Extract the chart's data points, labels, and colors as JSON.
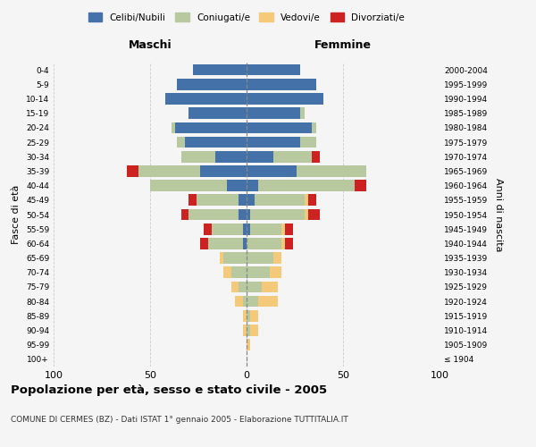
{
  "title": "Popolazione per età, sesso e stato civile - 2005",
  "subtitle": "COMUNE DI CERMES (BZ) - Dati ISTAT 1° gennaio 2005 - Elaborazione TUTTITALIA.IT",
  "xlabel_left": "Maschi",
  "xlabel_right": "Femmine",
  "ylabel_left": "Fasce di età",
  "ylabel_right": "Anni di nascita",
  "xlim": 100,
  "age_groups": [
    "100+",
    "95-99",
    "90-94",
    "85-89",
    "80-84",
    "75-79",
    "70-74",
    "65-69",
    "60-64",
    "55-59",
    "50-54",
    "45-49",
    "40-44",
    "35-39",
    "30-34",
    "25-29",
    "20-24",
    "15-19",
    "10-14",
    "5-9",
    "0-4"
  ],
  "birth_years": [
    "≤ 1904",
    "1905-1909",
    "1910-1914",
    "1915-1919",
    "1920-1924",
    "1925-1929",
    "1930-1934",
    "1935-1939",
    "1940-1944",
    "1945-1949",
    "1950-1954",
    "1955-1959",
    "1960-1964",
    "1965-1969",
    "1970-1974",
    "1975-1979",
    "1980-1984",
    "1985-1989",
    "1990-1994",
    "1995-1999",
    "2000-2004"
  ],
  "colors": {
    "celibi": "#4472a8",
    "coniugati": "#b8c9a0",
    "vedovi": "#f5c97a",
    "divorziati": "#cc2222"
  },
  "legend_labels": [
    "Celibi/Nubili",
    "Coniugati/e",
    "Vedovi/e",
    "Divorziati/e"
  ],
  "males": {
    "celibi": [
      0,
      0,
      0,
      0,
      0,
      0,
      0,
      0,
      2,
      2,
      4,
      4,
      10,
      24,
      16,
      32,
      37,
      30,
      42,
      36,
      28
    ],
    "coniugati": [
      0,
      0,
      0,
      0,
      2,
      4,
      8,
      12,
      18,
      16,
      26,
      22,
      40,
      32,
      18,
      4,
      2,
      0,
      0,
      0,
      0
    ],
    "vedovi": [
      0,
      0,
      2,
      2,
      4,
      4,
      4,
      2,
      0,
      0,
      0,
      0,
      0,
      0,
      0,
      0,
      0,
      0,
      0,
      0,
      0
    ],
    "divorziati": [
      0,
      0,
      0,
      0,
      0,
      0,
      0,
      0,
      4,
      4,
      4,
      4,
      0,
      6,
      0,
      0,
      0,
      0,
      0,
      0,
      0
    ]
  },
  "females": {
    "nubili": [
      0,
      0,
      0,
      0,
      0,
      0,
      0,
      0,
      0,
      2,
      2,
      4,
      6,
      26,
      14,
      28,
      34,
      28,
      40,
      36,
      28
    ],
    "coniugate": [
      0,
      0,
      2,
      2,
      6,
      8,
      12,
      14,
      18,
      16,
      28,
      26,
      50,
      36,
      20,
      8,
      2,
      2,
      0,
      0,
      0
    ],
    "vedove": [
      0,
      2,
      4,
      4,
      10,
      8,
      6,
      4,
      2,
      2,
      2,
      2,
      0,
      0,
      0,
      0,
      0,
      0,
      0,
      0,
      0
    ],
    "divorziate": [
      0,
      0,
      0,
      0,
      0,
      0,
      0,
      0,
      4,
      4,
      6,
      4,
      6,
      0,
      4,
      0,
      0,
      0,
      0,
      0,
      0
    ]
  },
  "background_color": "#f5f5f5",
  "grid_color": "#cccccc"
}
